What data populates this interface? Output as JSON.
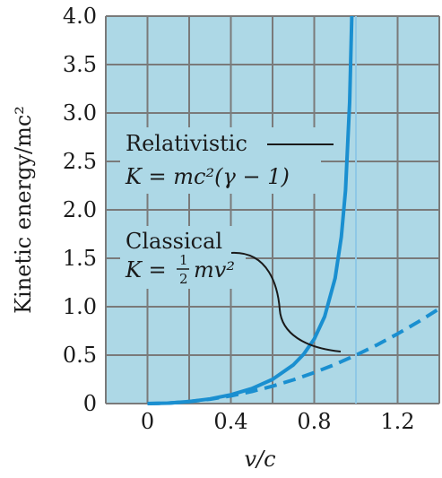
{
  "chart_data": {
    "type": "line",
    "xlabel": "v/c",
    "ylabel": "Kinetic energy/mc²",
    "xlim": [
      -0.2,
      1.4
    ],
    "ylim": [
      0,
      4.0
    ],
    "x_ticks": [
      "0",
      "0.4",
      "0.8",
      "1.2"
    ],
    "x_tick_values": [
      0,
      0.4,
      0.8,
      1.2
    ],
    "y_ticks": [
      "0",
      "0.5",
      "1.0",
      "1.5",
      "2.0",
      "2.5",
      "3.0",
      "3.5",
      "4.0"
    ],
    "y_tick_values": [
      0,
      0.5,
      1.0,
      1.5,
      2.0,
      2.5,
      3.0,
      3.5,
      4.0
    ],
    "grid": true,
    "series": [
      {
        "name": "Relativistic",
        "formula": "K = mc²(γ − 1)",
        "color": "#1a8fd0",
        "style": "solid",
        "x": [
          0,
          0.1,
          0.2,
          0.3,
          0.4,
          0.5,
          0.6,
          0.7,
          0.75,
          0.8,
          0.85,
          0.9,
          0.93,
          0.95,
          0.97,
          0.98
        ],
        "y": [
          0,
          0.005,
          0.021,
          0.048,
          0.091,
          0.155,
          0.25,
          0.4,
          0.512,
          0.667,
          0.898,
          1.294,
          1.72,
          2.203,
          3.113,
          4.0
        ]
      },
      {
        "name": "Classical",
        "formula_parts": [
          "K = ",
          "1",
          "2",
          "mv²"
        ],
        "color": "#1a8fd0",
        "style": "dashed",
        "x": [
          0,
          0.1,
          0.2,
          0.3,
          0.4,
          0.5,
          0.6,
          0.7,
          0.8,
          0.9,
          1.0,
          1.1,
          1.2,
          1.3,
          1.4
        ],
        "y": [
          0,
          0.005,
          0.02,
          0.045,
          0.08,
          0.125,
          0.18,
          0.245,
          0.32,
          0.405,
          0.5,
          0.605,
          0.72,
          0.845,
          0.98
        ]
      }
    ],
    "reference_line": {
      "x": 1.0,
      "color": "#8ec8e6"
    },
    "colors": {
      "background": "#add8e6",
      "grid": "#7a7a7a",
      "curve": "#1a8fd0"
    }
  }
}
